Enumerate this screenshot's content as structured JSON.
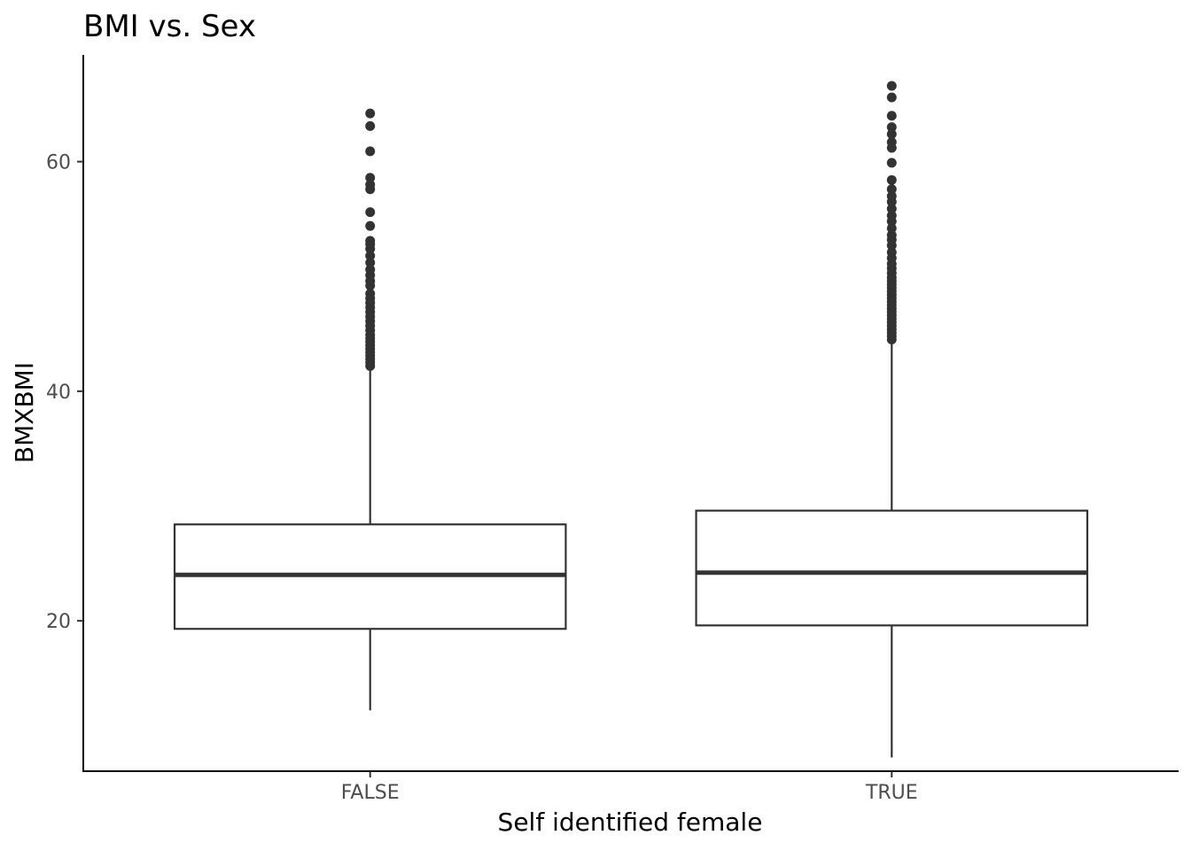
{
  "chart_data": {
    "type": "boxplot",
    "title": "BMI vs. Sex",
    "xlabel": "Self identified female",
    "ylabel": "BMXBMI",
    "categories": [
      "FALSE",
      "TRUE"
    ],
    "ylim": [
      6.9,
      69.3
    ],
    "yticks": [
      20,
      40,
      60
    ],
    "grid": false,
    "boxes": [
      {
        "category": "FALSE",
        "whisker_low": 12.2,
        "q1": 19.3,
        "median": 24.0,
        "q3": 28.4,
        "whisker_high": 42.0,
        "outliers": [
          42.2,
          42.5,
          42.8,
          43.1,
          43.4,
          43.7,
          44.0,
          44.3,
          44.6,
          44.9,
          45.3,
          45.7,
          46.1,
          46.5,
          46.9,
          47.3,
          47.7,
          48.1,
          48.5,
          49.2,
          49.6,
          50.1,
          50.6,
          51.2,
          51.8,
          52.4,
          52.8,
          53.1,
          54.4,
          55.6,
          57.6,
          58.0,
          58.6,
          60.9,
          63.1,
          64.2
        ]
      },
      {
        "category": "TRUE",
        "whisker_low": 8.1,
        "q1": 19.6,
        "median": 24.2,
        "q3": 29.6,
        "whisker_high": 44.3,
        "outliers": [
          44.5,
          44.8,
          45.1,
          45.4,
          45.7,
          46.0,
          46.3,
          46.6,
          46.9,
          47.2,
          47.5,
          47.8,
          48.1,
          48.4,
          48.7,
          49.0,
          49.3,
          49.6,
          49.9,
          50.3,
          50.7,
          51.1,
          51.6,
          52.1,
          52.7,
          53.2,
          53.6,
          54.2,
          54.8,
          55.3,
          55.9,
          56.5,
          57.0,
          57.6,
          58.4,
          59.9,
          61.2,
          61.7,
          62.4,
          63.0,
          64.0,
          65.6,
          66.6
        ]
      }
    ]
  }
}
